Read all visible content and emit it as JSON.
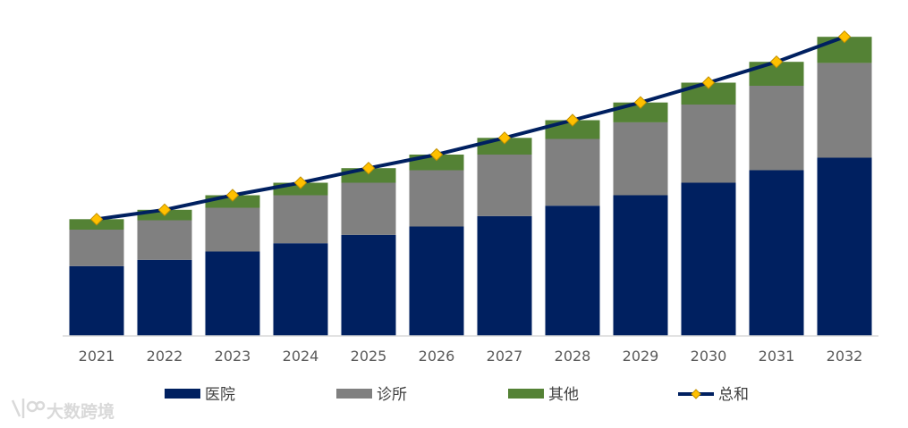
{
  "chart_data": {
    "type": "bar",
    "stacked": true,
    "categories": [
      "2021",
      "2022",
      "2023",
      "2024",
      "2025",
      "2026",
      "2027",
      "2028",
      "2029",
      "2030",
      "2031",
      "2032"
    ],
    "series": [
      {
        "name": "医院",
        "color": "#002060",
        "values": [
          67,
          73,
          81,
          89,
          97,
          105,
          115,
          125,
          135,
          147,
          159,
          171
        ]
      },
      {
        "name": "诊所",
        "color": "#808080",
        "values": [
          35,
          38,
          42,
          46,
          50,
          54,
          59,
          64,
          70,
          75,
          81,
          91
        ]
      },
      {
        "name": "其他",
        "color": "#548235",
        "values": [
          10,
          10,
          12,
          12,
          14,
          15,
          16,
          18,
          19,
          21,
          23,
          25
        ]
      }
    ],
    "line_series": {
      "name": "总和",
      "color": "#002060",
      "marker_color": "#ffc000",
      "values": [
        112,
        121,
        135,
        147,
        161,
        174,
        190,
        207,
        224,
        243,
        263,
        287
      ]
    },
    "ylim": [
      0,
      300
    ],
    "y_axis_visible": false,
    "legend_position": "bottom",
    "title": "",
    "xlabel": "",
    "ylabel": ""
  },
  "watermark": {
    "text": "大数跨境"
  }
}
